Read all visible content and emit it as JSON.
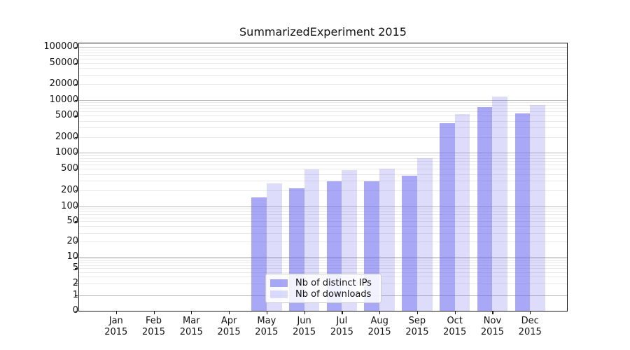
{
  "title": "SummarizedExperiment 2015",
  "legend": {
    "items": [
      {
        "label": "Nb of distinct IPs"
      },
      {
        "label": "Nb of downloads"
      }
    ]
  },
  "chart_data": {
    "type": "bar",
    "title": "SummarizedExperiment 2015",
    "categories": [
      "Jan 2015",
      "Feb 2015",
      "Mar 2015",
      "Apr 2015",
      "May 2015",
      "Jun 2015",
      "Jul 2015",
      "Aug 2015",
      "Sep 2015",
      "Oct 2015",
      "Nov 2015",
      "Dec 2015"
    ],
    "series": [
      {
        "name": "Nb of distinct IPs",
        "values": [
          0,
          0,
          0,
          0,
          148,
          215,
          290,
          290,
          375,
          3600,
          7300,
          5600
        ]
      },
      {
        "name": "Nb of downloads",
        "values": [
          0,
          0,
          0,
          0,
          265,
          490,
          475,
          500,
          790,
          5400,
          11500,
          8000
        ]
      }
    ],
    "y_ticks": [
      0,
      1,
      2,
      5,
      10,
      20,
      50,
      100,
      200,
      500,
      1000,
      2000,
      5000,
      10000,
      20000,
      50000,
      100000
    ],
    "y_scale": "symlog",
    "ylim": [
      0,
      100000
    ],
    "xlabel": "",
    "ylabel": "",
    "grid": "horizontal major+minor",
    "legend_position": "inside lower-center",
    "colors": {
      "bar_base": "#6363ef",
      "ips_fill": "rgba(99,99,239,0.56)",
      "downloads_fill": "rgba(99,99,239,0.22)",
      "grid_major": "#b9b9b9",
      "grid_minor": "#e9e9e9",
      "frame": "#1a1a1a"
    }
  }
}
